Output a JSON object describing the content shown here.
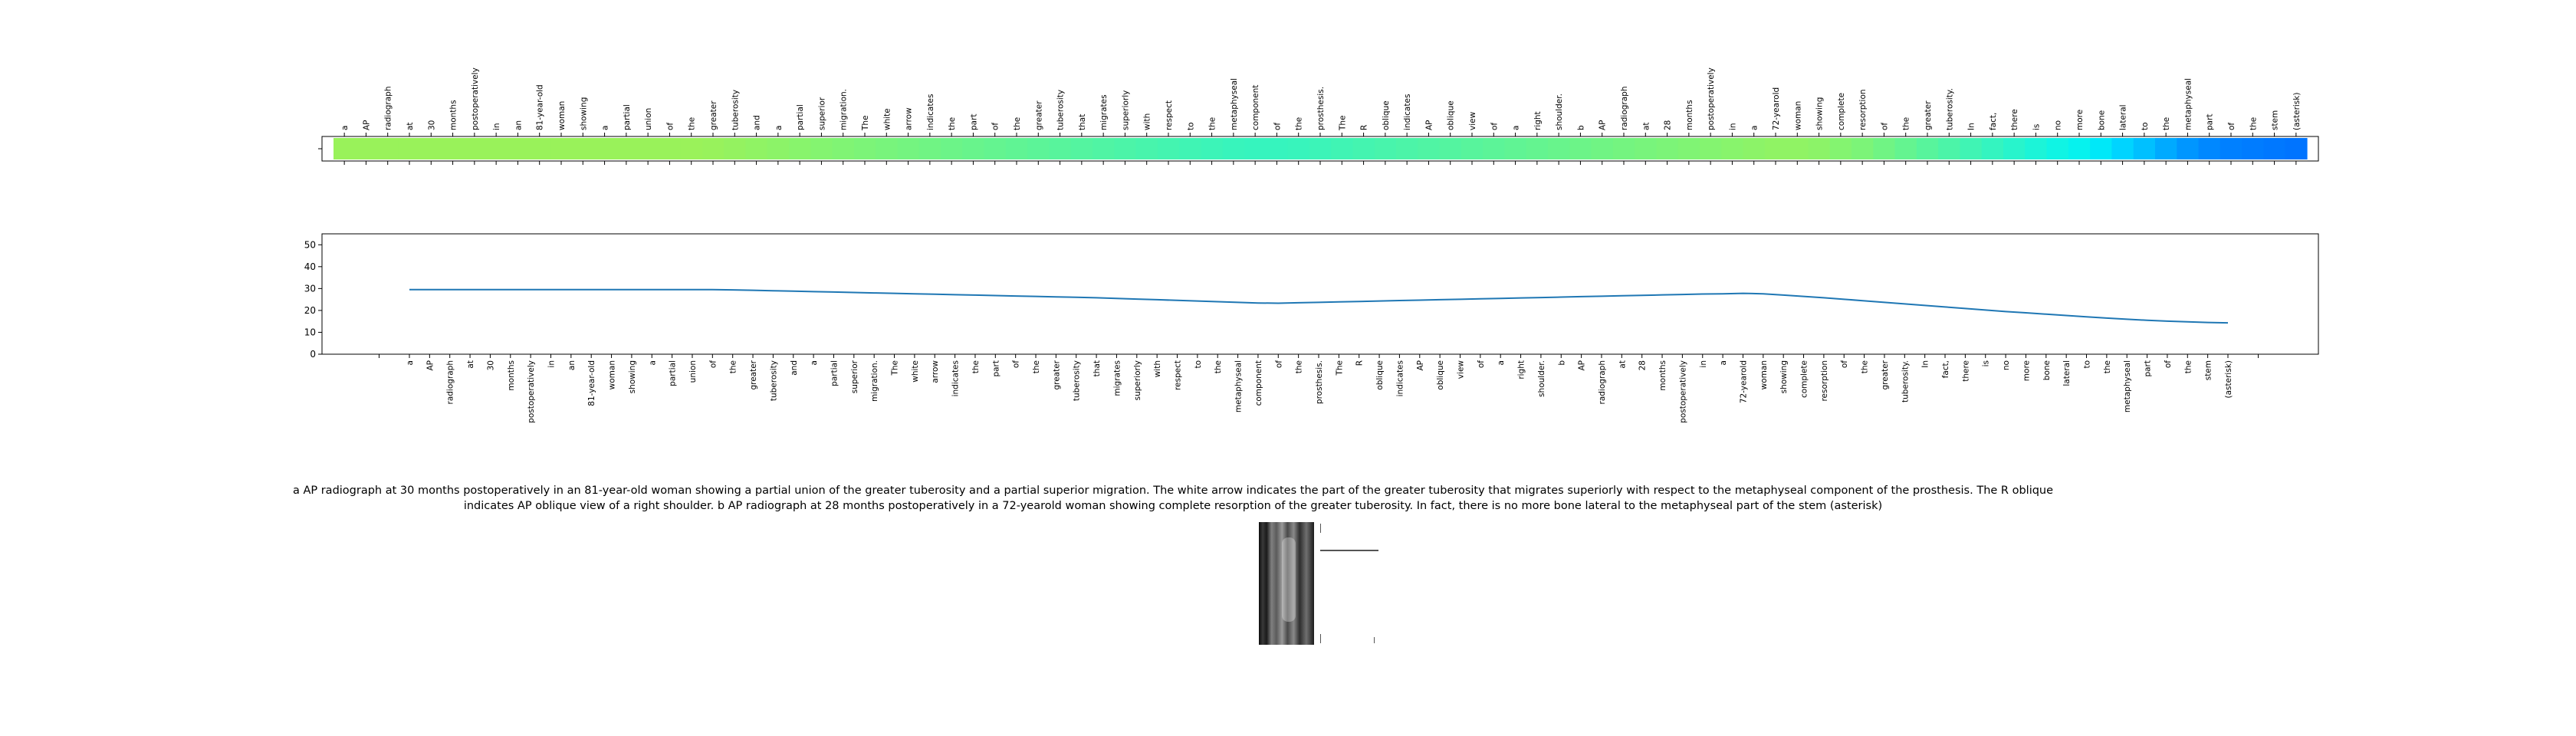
{
  "chart_data": [
    {
      "type": "heatmap",
      "tokens": [
        "a",
        "AP",
        "radiograph",
        "at",
        "30",
        "months",
        "postoperatively",
        "in",
        "an",
        "81-year-old",
        "woman",
        "showing",
        "a",
        "partial",
        "union",
        "of",
        "the",
        "greater",
        "tuberosity",
        "and",
        "a",
        "partial",
        "superior",
        "migration.",
        "The",
        "white",
        "arrow",
        "indicates",
        "the",
        "part",
        "of",
        "the",
        "greater",
        "tuberosity",
        "that",
        "migrates",
        "superiorly",
        "with",
        "respect",
        "to",
        "the",
        "metaphyseal",
        "component",
        "of",
        "the",
        "prosthesis.",
        "The",
        "R",
        "oblique",
        "indicates",
        "AP",
        "oblique",
        "view",
        "of",
        "a",
        "right",
        "shoulder.",
        "b",
        "AP",
        "radiograph",
        "at",
        "28",
        "months",
        "postoperatively",
        "in",
        "a",
        "72-yearold",
        "woman",
        "showing",
        "complete",
        "resorption",
        "of",
        "the",
        "greater",
        "tuberosity.",
        "In",
        "fact,",
        "there",
        "is",
        "no",
        "more",
        "bone",
        "lateral",
        "to",
        "the",
        "metaphyseal",
        "part",
        "of",
        "the",
        "stem",
        "(asterisk)"
      ],
      "colors": [
        "#99f25a",
        "#99f25a",
        "#99f25a",
        "#99f25a",
        "#99f25a",
        "#99f25a",
        "#99f25a",
        "#99f25a",
        "#99f25a",
        "#99f25a",
        "#99f25a",
        "#99f25a",
        "#99f25a",
        "#99f25a",
        "#99f25a",
        "#99f25a",
        "#9af25a",
        "#98f25c",
        "#94f260",
        "#90f364",
        "#8cf368",
        "#88f46c",
        "#84f470",
        "#80f474",
        "#7cf478",
        "#78f47c",
        "#74f480",
        "#70f484",
        "#6cf488",
        "#68f48c",
        "#64f490",
        "#60f494",
        "#5cf498",
        "#58f49c",
        "#54f4a0",
        "#50f4a4",
        "#4cf4a8",
        "#48f4ac",
        "#44f4b0",
        "#40f4b4",
        "#3cf4b8",
        "#38f4bc",
        "#36f4be",
        "#36f4be",
        "#38f4bc",
        "#3cf4b8",
        "#40f4b4",
        "#44f4b0",
        "#48f4ac",
        "#4cf4a8",
        "#50f4a4",
        "#54f4a0",
        "#58f49c",
        "#5cf498",
        "#60f494",
        "#64f490",
        "#68f48c",
        "#6cf488",
        "#70f484",
        "#74f480",
        "#78f47c",
        "#7cf478",
        "#80f474",
        "#84f470",
        "#88f46c",
        "#8cf368",
        "#90f364",
        "#90f364",
        "#8cf368",
        "#84f470",
        "#7cf478",
        "#70f484",
        "#64f490",
        "#58f49c",
        "#4cf4a8",
        "#40f4b4",
        "#34f4c0",
        "#28f4cc",
        "#1cf4d8",
        "#10f4e4",
        "#06f2ee",
        "#00e8f8",
        "#00d4ff",
        "#00c0ff",
        "#00aaff",
        "#0096ff",
        "#0088ff",
        "#0080ff",
        "#007cff",
        "#0078ff",
        "#0074ff"
      ]
    },
    {
      "type": "line",
      "x": [
        "a",
        "AP",
        "radiograph",
        "at",
        "30",
        "months",
        "postoperatively",
        "in",
        "an",
        "81-year-old",
        "woman",
        "showing",
        "a",
        "partial",
        "union",
        "of",
        "the",
        "greater",
        "tuberosity",
        "and",
        "a",
        "partial",
        "superior",
        "migration.",
        "The",
        "white",
        "arrow",
        "indicates",
        "the",
        "part",
        "of",
        "the",
        "greater",
        "tuberosity",
        "that",
        "migrates",
        "superiorly",
        "with",
        "respect",
        "to",
        "the",
        "metaphyseal",
        "component",
        "of",
        "the",
        "prosthesis.",
        "The",
        "R",
        "oblique",
        "indicates",
        "AP",
        "oblique",
        "view",
        "of",
        "a",
        "right",
        "shoulder.",
        "b",
        "AP",
        "radiograph",
        "at",
        "28",
        "months",
        "postoperatively",
        "in",
        "a",
        "72-yearold",
        "woman",
        "showing",
        "complete",
        "resorption",
        "of",
        "the",
        "greater",
        "tuberosity.",
        "In",
        "fact,",
        "there",
        "is",
        "no",
        "more",
        "bone",
        "lateral",
        "to",
        "the",
        "metaphyseal",
        "part",
        "of",
        "the",
        "stem",
        "(asterisk)"
      ],
      "values": [
        29.5,
        29.5,
        29.5,
        29.5,
        29.5,
        29.5,
        29.5,
        29.5,
        29.5,
        29.5,
        29.5,
        29.5,
        29.5,
        29.5,
        29.5,
        29.5,
        29.4,
        29.2,
        29.0,
        28.8,
        28.6,
        28.4,
        28.2,
        28.0,
        27.8,
        27.6,
        27.4,
        27.2,
        27.0,
        26.8,
        26.6,
        26.4,
        26.2,
        26.0,
        25.8,
        25.5,
        25.2,
        24.9,
        24.6,
        24.3,
        24.0,
        23.7,
        23.4,
        23.3,
        23.5,
        23.7,
        23.9,
        24.1,
        24.3,
        24.5,
        24.7,
        24.9,
        25.1,
        25.3,
        25.5,
        25.7,
        25.9,
        26.1,
        26.3,
        26.5,
        26.7,
        26.9,
        27.1,
        27.3,
        27.5,
        27.6,
        27.8,
        27.6,
        27.0,
        26.4,
        25.8,
        25.1,
        24.4,
        23.7,
        23.0,
        22.3,
        21.6,
        20.9,
        20.2,
        19.5,
        18.9,
        18.3,
        17.7,
        17.1,
        16.5,
        16.0,
        15.5,
        15.1,
        14.8,
        14.5,
        14.3
      ],
      "ylim": [
        0,
        55
      ],
      "yticks": [
        0,
        10,
        20,
        30,
        40,
        50
      ],
      "line_color": "#1f77b4"
    }
  ],
  "caption": "a AP radiograph at 30 months postoperatively in an 81-year-old woman showing a partial union of the greater tuberosity and a partial superior migration. The white arrow indicates the part of the greater tuberosity that migrates superiorly with respect to the metaphyseal component of the prosthesis. The R oblique indicates AP oblique view of a right shoulder. b AP radiograph at 28 months postoperatively in a 72-yearold woman showing complete resorption of the greater tuberosity. In fact, there is no more bone lateral to the metaphyseal part of the stem (asterisk)"
}
